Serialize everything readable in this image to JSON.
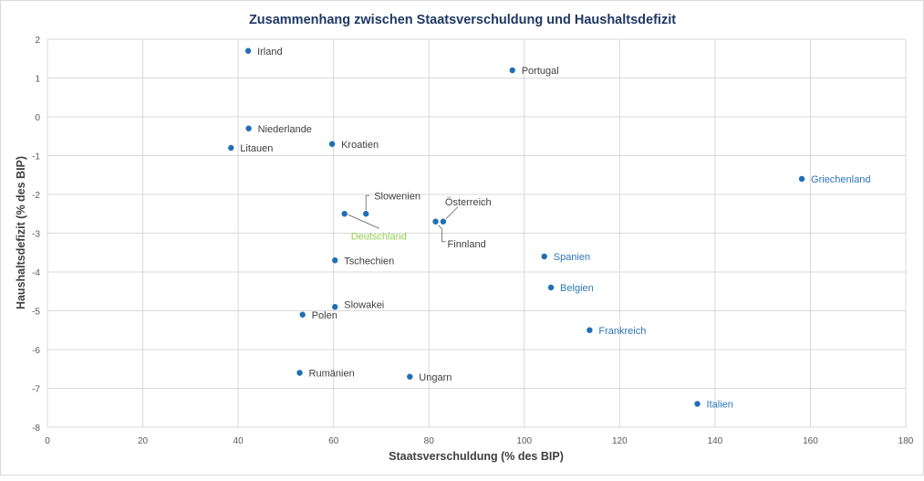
{
  "chart_data": {
    "type": "scatter",
    "title": "Zusammenhang zwischen Staatsverschuldung und Haushaltsdefizit",
    "xlabel": "Staatsverschuldung (% des BIP)",
    "ylabel": "Haushaltsdefizit (% des BIP)",
    "xlim": [
      0,
      180
    ],
    "ylim": [
      -8,
      2
    ],
    "xticks": [
      "0",
      "20",
      "40",
      "60",
      "80",
      "100",
      "120",
      "140",
      "160",
      "180"
    ],
    "yticks": [
      "2",
      "1",
      "0",
      "-1",
      "-2",
      "-3",
      "-4",
      "-5",
      "-6",
      "-7",
      "-8"
    ],
    "grid": true,
    "colors": {
      "point": "#1f6fb5",
      "label_dark": "#404040",
      "label_blue": "#2e75b6",
      "label_green": "#92d050",
      "title": "#1f3864",
      "grid": "#d9d9d9"
    },
    "points": [
      {
        "label": "Irland",
        "x": 42.1,
        "y": 1.7,
        "style": "dark"
      },
      {
        "label": "Portugal",
        "x": 97.5,
        "y": 1.2,
        "style": "dark"
      },
      {
        "label": "Niederlande",
        "x": 42.2,
        "y": -0.3,
        "style": "dark"
      },
      {
        "label": "Litauen",
        "x": 38.5,
        "y": -0.8,
        "style": "dark"
      },
      {
        "label": "Kroatien",
        "x": 59.7,
        "y": -0.7,
        "style": "dark"
      },
      {
        "label": "Griechenland",
        "x": 158.2,
        "y": -1.6,
        "style": "blue"
      },
      {
        "label": "Slowenien",
        "x": 66.8,
        "y": -2.5,
        "style": "dark"
      },
      {
        "label": "Deutschland",
        "x": 62.3,
        "y": -2.5,
        "style": "green"
      },
      {
        "label": "Österreich",
        "x": 83.0,
        "y": -2.7,
        "style": "dark"
      },
      {
        "label": "Finnland",
        "x": 81.4,
        "y": -2.7,
        "style": "dark"
      },
      {
        "label": "Spanien",
        "x": 104.2,
        "y": -3.6,
        "style": "blue"
      },
      {
        "label": "Tschechien",
        "x": 60.3,
        "y": -3.7,
        "style": "dark"
      },
      {
        "label": "Belgien",
        "x": 105.6,
        "y": -4.4,
        "style": "blue"
      },
      {
        "label": "Slowakei",
        "x": 60.3,
        "y": -4.9,
        "style": "dark"
      },
      {
        "label": "Polen",
        "x": 53.5,
        "y": -5.1,
        "style": "dark"
      },
      {
        "label": "Frankreich",
        "x": 113.7,
        "y": -5.5,
        "style": "blue"
      },
      {
        "label": "Rumänien",
        "x": 52.9,
        "y": -6.6,
        "style": "dark"
      },
      {
        "label": "Ungarn",
        "x": 76.0,
        "y": -6.7,
        "style": "dark"
      },
      {
        "label": "Italien",
        "x": 136.3,
        "y": -7.4,
        "style": "blue"
      }
    ]
  }
}
